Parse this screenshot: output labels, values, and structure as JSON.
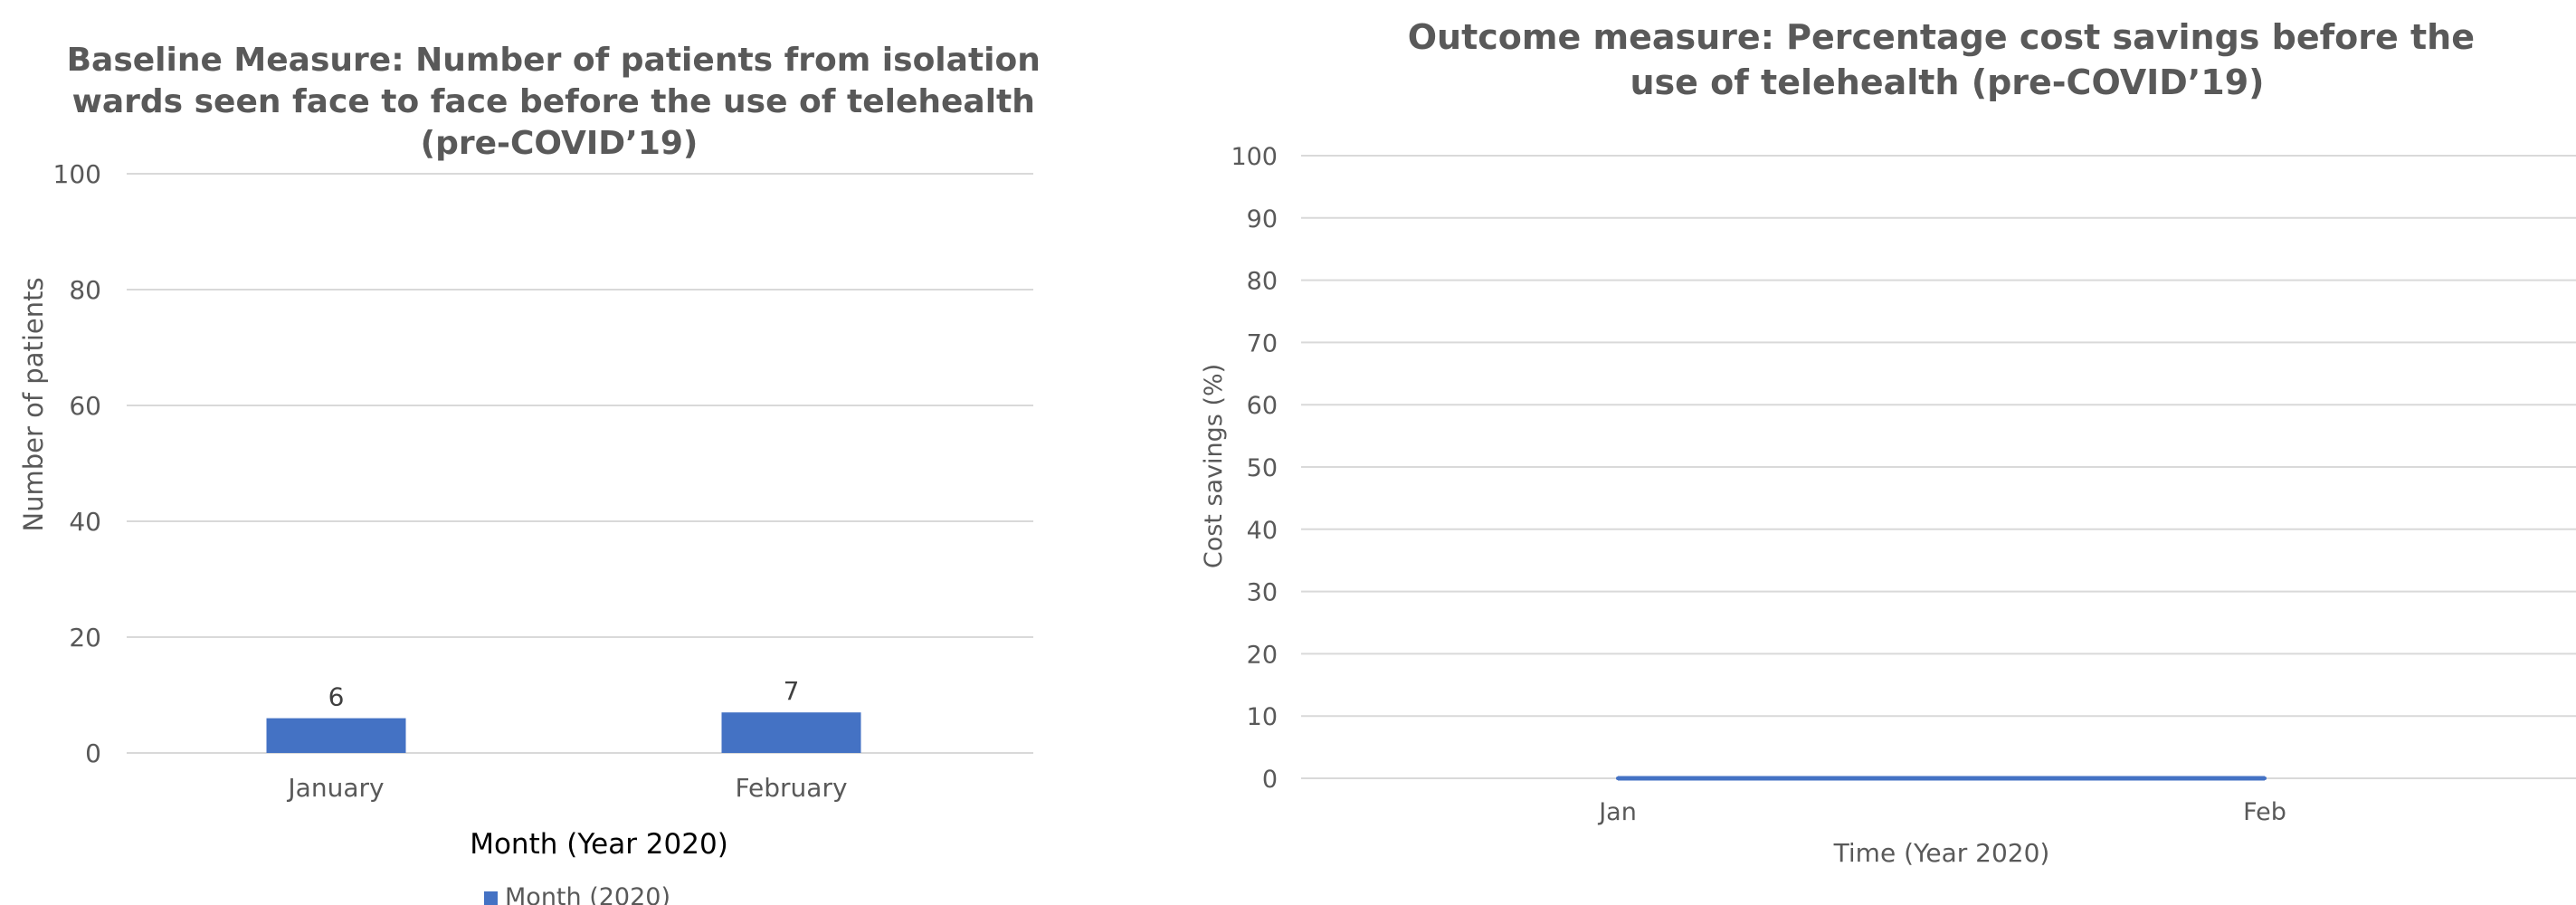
{
  "colors": {
    "series": "#4472c4",
    "text": "#595959",
    "grid": "#d9d9d9"
  },
  "chart_data": [
    {
      "type": "bar",
      "title_lines": [
        "Baseline Measure: Number of patients from isolation",
        "wards seen face to face before the use of telehealth",
        "(pre-COVID’19)"
      ],
      "categories": [
        "January",
        "February"
      ],
      "series": [
        {
          "name": "Month (2020)",
          "values": [
            6,
            7
          ]
        }
      ],
      "data_labels": [
        "6",
        "7"
      ],
      "xlabel": "Month (Year 2020)",
      "ylabel": "Number of patients",
      "ylim": [
        0,
        100
      ],
      "yticks": [
        "0",
        "20",
        "40",
        "60",
        "80",
        "100"
      ],
      "grid": true,
      "legend": "bottom"
    },
    {
      "type": "line",
      "title_lines": [
        "Outcome measure: Percentage cost savings before the",
        "use of telehealth (pre-COVID’19)"
      ],
      "categories": [
        "Jan",
        "Feb"
      ],
      "series": [
        {
          "values": [
            0,
            0
          ]
        }
      ],
      "xlabel": "Time (Year 2020)",
      "ylabel": "Cost savings (%)",
      "ylim": [
        0,
        100
      ],
      "yticks": [
        "0",
        "10",
        "20",
        "30",
        "40",
        "50",
        "60",
        "70",
        "80",
        "90",
        "100"
      ],
      "grid": true,
      "legend": "none"
    }
  ]
}
